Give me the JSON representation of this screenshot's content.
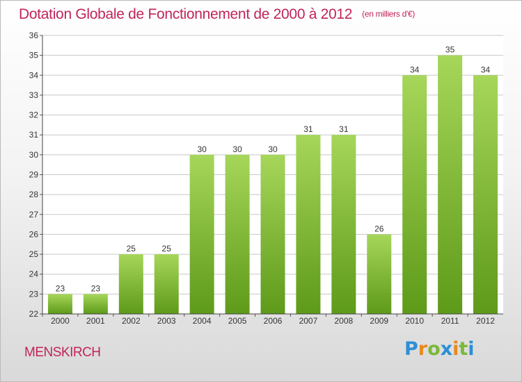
{
  "header": {
    "title": "Dotation Globale de Fonctionnement de 2000 à 2012",
    "subtitle": "(en milliers d'€)"
  },
  "footer": {
    "commune": "MENSKIRCH",
    "brand": "Proxiti",
    "brand_colors": [
      "#2a8fd6",
      "#e8891c",
      "#7cb83a",
      "#2a8fd6",
      "#e8891c",
      "#7cb83a",
      "#2a8fd6"
    ]
  },
  "colors": {
    "title": "#c0245c",
    "bar_top": "#a6d65a",
    "bar_bottom": "#5e9a1a",
    "grid": "#c8c8c8"
  },
  "chart_data": {
    "type": "bar",
    "title": "Dotation Globale de Fonctionnement de 2000 à 2012",
    "subtitle": "(en milliers d'€)",
    "categories": [
      "2000",
      "2001",
      "2002",
      "2003",
      "2004",
      "2005",
      "2006",
      "2007",
      "2008",
      "2009",
      "2010",
      "2011",
      "2012"
    ],
    "values": [
      23,
      23,
      25,
      25,
      30,
      30,
      30,
      31,
      31,
      26,
      34,
      35,
      34
    ],
    "ylim": [
      22,
      36
    ],
    "yticks": [
      22,
      23,
      24,
      25,
      26,
      27,
      28,
      29,
      30,
      31,
      32,
      33,
      34,
      35,
      36
    ],
    "grid": true,
    "xlabel": "",
    "ylabel": ""
  }
}
